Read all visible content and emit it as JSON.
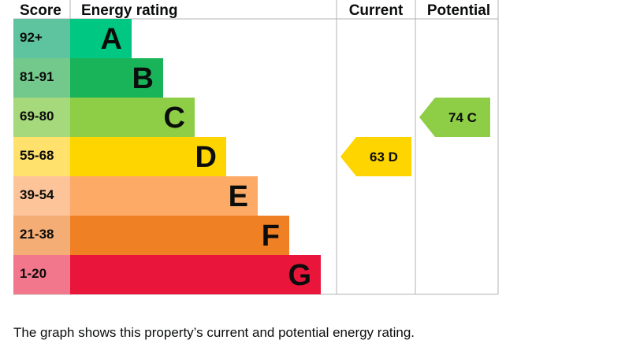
{
  "headers": {
    "score": "Score",
    "energy_rating": "Energy rating",
    "current": "Current",
    "potential": "Potential"
  },
  "chart_data": {
    "type": "bar",
    "categories": [
      "A",
      "B",
      "C",
      "D",
      "E",
      "F",
      "G"
    ],
    "bands": [
      {
        "letter": "A",
        "range": "92+",
        "score_color": "#5ec49f",
        "bar_color": "#00c781"
      },
      {
        "letter": "B",
        "range": "81-91",
        "score_color": "#72c98b",
        "bar_color": "#19b459"
      },
      {
        "letter": "C",
        "range": "69-80",
        "score_color": "#a6d87c",
        "bar_color": "#8dce46"
      },
      {
        "letter": "D",
        "range": "55-68",
        "score_color": "#ffe16b",
        "bar_color": "#ffd500"
      },
      {
        "letter": "E",
        "range": "39-54",
        "score_color": "#fdc49a",
        "bar_color": "#fcaa65"
      },
      {
        "letter": "F",
        "range": "21-38",
        "score_color": "#f4ad74",
        "bar_color": "#ef8023"
      },
      {
        "letter": "G",
        "range": "1-20",
        "score_color": "#f3778c",
        "bar_color": "#e9153b"
      }
    ],
    "current": {
      "value": 63,
      "band": "D",
      "label": "63 D",
      "color": "#ffd500"
    },
    "potential": {
      "value": 74,
      "band": "C",
      "label": "74 C",
      "color": "#8dce46"
    }
  },
  "caption": "The graph shows this property’s current and potential energy rating."
}
